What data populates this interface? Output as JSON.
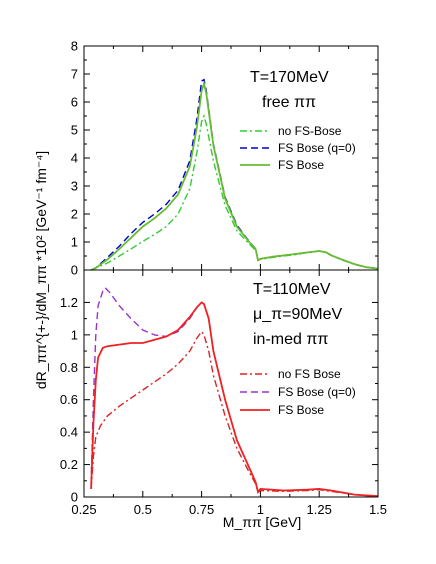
{
  "chart_data": [
    {
      "type": "line",
      "title": "",
      "xlabel": "M_ππ [GeV]",
      "ylabel": "dR_ππ^{+-}/dM_ππ *10² [GeV⁻¹ fm⁻⁴]",
      "xlim": [
        0.25,
        1.5
      ],
      "ylim": [
        0,
        8
      ],
      "x_ticks": [
        0.25,
        0.5,
        0.75,
        1,
        1.25,
        1.5
      ],
      "x_tick_labels": [
        "0.25",
        "0.5",
        "0.75",
        "1",
        "1.25",
        "1.5"
      ],
      "y_ticks": [
        0,
        1,
        2,
        3,
        4,
        5,
        6,
        7,
        8
      ],
      "y_tick_labels": [
        "0",
        "1",
        "2",
        "3",
        "4",
        "5",
        "6",
        "7",
        "8"
      ],
      "annotations": [
        "T=170MeV",
        "free ππ"
      ],
      "legend_position": "right",
      "series": [
        {
          "name": "no FS-Bose",
          "color": "#33cc33",
          "dash": "dash-dot",
          "points": [
            [
              0.28,
              0
            ],
            [
              0.3,
              0.07
            ],
            [
              0.35,
              0.25
            ],
            [
              0.4,
              0.5
            ],
            [
              0.45,
              0.75
            ],
            [
              0.5,
              1.02
            ],
            [
              0.55,
              1.27
            ],
            [
              0.6,
              1.55
            ],
            [
              0.65,
              2.0
            ],
            [
              0.7,
              2.9
            ],
            [
              0.73,
              4.2
            ],
            [
              0.75,
              5.3
            ],
            [
              0.76,
              5.5
            ],
            [
              0.77,
              5.2
            ],
            [
              0.8,
              3.9
            ],
            [
              0.85,
              2.3
            ],
            [
              0.9,
              1.4
            ],
            [
              0.95,
              0.95
            ],
            [
              0.98,
              0.7
            ],
            [
              0.99,
              0.35
            ],
            [
              1.0,
              0.38
            ],
            [
              1.05,
              0.45
            ],
            [
              1.1,
              0.5
            ],
            [
              1.15,
              0.55
            ],
            [
              1.2,
              0.62
            ],
            [
              1.25,
              0.67
            ],
            [
              1.28,
              0.62
            ],
            [
              1.3,
              0.52
            ],
            [
              1.35,
              0.35
            ],
            [
              1.4,
              0.2
            ],
            [
              1.45,
              0.1
            ],
            [
              1.5,
              0.05
            ]
          ]
        },
        {
          "name": "FS Bose (q=0)",
          "color": "#0000cc",
          "dash": "dashed",
          "points": [
            [
              0.28,
              0
            ],
            [
              0.3,
              0.08
            ],
            [
              0.35,
              0.45
            ],
            [
              0.4,
              0.85
            ],
            [
              0.45,
              1.3
            ],
            [
              0.5,
              1.7
            ],
            [
              0.55,
              2.0
            ],
            [
              0.6,
              2.35
            ],
            [
              0.65,
              2.85
            ],
            [
              0.7,
              3.9
            ],
            [
              0.73,
              5.4
            ],
            [
              0.75,
              6.75
            ],
            [
              0.76,
              6.8
            ],
            [
              0.77,
              6.4
            ],
            [
              0.8,
              4.5
            ],
            [
              0.85,
              2.6
            ],
            [
              0.9,
              1.6
            ],
            [
              0.95,
              1.05
            ],
            [
              0.98,
              0.75
            ],
            [
              0.99,
              0.35
            ],
            [
              1.0,
              0.4
            ],
            [
              1.05,
              0.47
            ],
            [
              1.1,
              0.52
            ],
            [
              1.15,
              0.57
            ],
            [
              1.2,
              0.63
            ],
            [
              1.25,
              0.68
            ],
            [
              1.28,
              0.63
            ],
            [
              1.3,
              0.53
            ],
            [
              1.35,
              0.36
            ],
            [
              1.4,
              0.21
            ],
            [
              1.45,
              0.1
            ],
            [
              1.5,
              0.05
            ]
          ]
        },
        {
          "name": "FS Bose",
          "color": "#66bb33",
          "dash": "solid",
          "points": [
            [
              0.28,
              0
            ],
            [
              0.3,
              0.07
            ],
            [
              0.35,
              0.38
            ],
            [
              0.4,
              0.75
            ],
            [
              0.45,
              1.15
            ],
            [
              0.5,
              1.55
            ],
            [
              0.55,
              1.85
            ],
            [
              0.6,
              2.2
            ],
            [
              0.65,
              2.7
            ],
            [
              0.7,
              3.7
            ],
            [
              0.73,
              5.1
            ],
            [
              0.75,
              6.4
            ],
            [
              0.76,
              6.65
            ],
            [
              0.77,
              6.3
            ],
            [
              0.8,
              4.45
            ],
            [
              0.85,
              2.55
            ],
            [
              0.9,
              1.55
            ],
            [
              0.95,
              1.03
            ],
            [
              0.98,
              0.74
            ],
            [
              0.99,
              0.35
            ],
            [
              1.0,
              0.4
            ],
            [
              1.05,
              0.47
            ],
            [
              1.1,
              0.52
            ],
            [
              1.15,
              0.57
            ],
            [
              1.2,
              0.63
            ],
            [
              1.25,
              0.68
            ],
            [
              1.28,
              0.63
            ],
            [
              1.3,
              0.53
            ],
            [
              1.35,
              0.36
            ],
            [
              1.4,
              0.21
            ],
            [
              1.45,
              0.1
            ],
            [
              1.5,
              0.05
            ]
          ]
        }
      ]
    },
    {
      "type": "line",
      "title": "",
      "xlabel": "M_ππ [GeV]",
      "ylabel": "dR_ππ^{+-}/dM_ππ *10² [GeV⁻¹ fm⁻⁴]",
      "xlim": [
        0.25,
        1.5
      ],
      "ylim": [
        0,
        1.4
      ],
      "x_ticks": [
        0.25,
        0.5,
        0.75,
        1,
        1.25,
        1.5
      ],
      "x_tick_labels": [
        "0.25",
        "0.5",
        "0.75",
        "1",
        "1.25",
        "1.5"
      ],
      "y_ticks": [
        0,
        0.2,
        0.4,
        0.6,
        0.8,
        1,
        1.2
      ],
      "y_tick_labels": [
        "0",
        "0.2",
        "0.4",
        "0.6",
        "0.8",
        "1",
        "1.2"
      ],
      "annotations": [
        "T=110MeV",
        "μ_π=90MeV",
        "in-med ππ"
      ],
      "legend_position": "right",
      "series": [
        {
          "name": "no FS Bose",
          "color": "#dd2222",
          "dash": "dash-dot",
          "points": [
            [
              0.28,
              0.05
            ],
            [
              0.29,
              0.25
            ],
            [
              0.3,
              0.37
            ],
            [
              0.32,
              0.44
            ],
            [
              0.35,
              0.5
            ],
            [
              0.4,
              0.56
            ],
            [
              0.45,
              0.61
            ],
            [
              0.5,
              0.66
            ],
            [
              0.55,
              0.71
            ],
            [
              0.6,
              0.76
            ],
            [
              0.65,
              0.82
            ],
            [
              0.7,
              0.9
            ],
            [
              0.73,
              0.98
            ],
            [
              0.75,
              1.02
            ],
            [
              0.76,
              1.0
            ],
            [
              0.78,
              0.9
            ],
            [
              0.8,
              0.75
            ],
            [
              0.85,
              0.5
            ],
            [
              0.9,
              0.3
            ],
            [
              0.95,
              0.16
            ],
            [
              0.98,
              0.08
            ],
            [
              0.99,
              0.03
            ],
            [
              1.0,
              0.04
            ],
            [
              1.1,
              0.035
            ],
            [
              1.2,
              0.04
            ],
            [
              1.25,
              0.045
            ],
            [
              1.3,
              0.035
            ],
            [
              1.4,
              0.015
            ],
            [
              1.5,
              0.005
            ]
          ]
        },
        {
          "name": "FS Bose (q=0)",
          "color": "#9933cc",
          "dash": "dashed",
          "points": [
            [
              0.28,
              0.08
            ],
            [
              0.29,
              0.6
            ],
            [
              0.3,
              1.0
            ],
            [
              0.31,
              1.18
            ],
            [
              0.33,
              1.27
            ],
            [
              0.34,
              1.29
            ],
            [
              0.36,
              1.26
            ],
            [
              0.4,
              1.18
            ],
            [
              0.45,
              1.1
            ],
            [
              0.5,
              1.03
            ],
            [
              0.55,
              1.0
            ],
            [
              0.6,
              0.99
            ],
            [
              0.65,
              1.02
            ],
            [
              0.7,
              1.1
            ],
            [
              0.73,
              1.17
            ],
            [
              0.75,
              1.2
            ],
            [
              0.76,
              1.19
            ],
            [
              0.78,
              1.1
            ],
            [
              0.8,
              0.9
            ],
            [
              0.85,
              0.6
            ],
            [
              0.9,
              0.35
            ],
            [
              0.95,
              0.19
            ],
            [
              0.98,
              0.09
            ],
            [
              0.99,
              0.03
            ],
            [
              1.0,
              0.05
            ],
            [
              1.1,
              0.04
            ],
            [
              1.2,
              0.045
            ],
            [
              1.25,
              0.05
            ],
            [
              1.3,
              0.04
            ],
            [
              1.4,
              0.015
            ],
            [
              1.5,
              0.005
            ]
          ]
        },
        {
          "name": "FS Bose",
          "color": "#ee2222",
          "dash": "solid",
          "points": [
            [
              0.28,
              0.05
            ],
            [
              0.29,
              0.45
            ],
            [
              0.3,
              0.72
            ],
            [
              0.31,
              0.86
            ],
            [
              0.33,
              0.92
            ],
            [
              0.35,
              0.93
            ],
            [
              0.4,
              0.94
            ],
            [
              0.45,
              0.95
            ],
            [
              0.5,
              0.95
            ],
            [
              0.55,
              0.97
            ],
            [
              0.6,
              0.99
            ],
            [
              0.65,
              1.03
            ],
            [
              0.7,
              1.11
            ],
            [
              0.73,
              1.17
            ],
            [
              0.75,
              1.2
            ],
            [
              0.76,
              1.19
            ],
            [
              0.78,
              1.1
            ],
            [
              0.8,
              0.9
            ],
            [
              0.85,
              0.6
            ],
            [
              0.9,
              0.35
            ],
            [
              0.95,
              0.19
            ],
            [
              0.98,
              0.09
            ],
            [
              0.99,
              0.03
            ],
            [
              1.0,
              0.05
            ],
            [
              1.1,
              0.04
            ],
            [
              1.2,
              0.045
            ],
            [
              1.25,
              0.05
            ],
            [
              1.3,
              0.04
            ],
            [
              1.4,
              0.015
            ],
            [
              1.5,
              0.005
            ]
          ]
        }
      ]
    }
  ]
}
